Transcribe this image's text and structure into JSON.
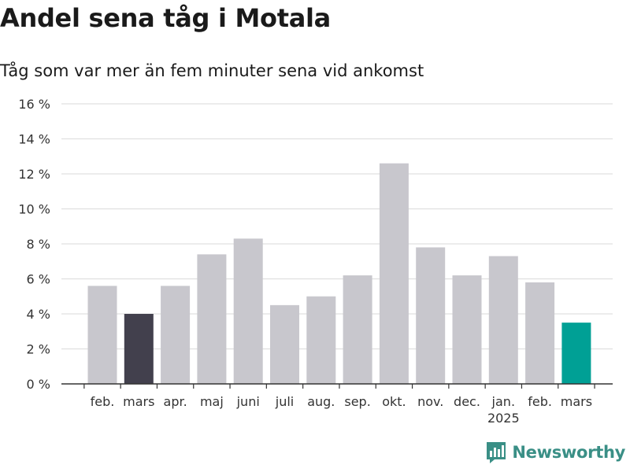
{
  "header": {
    "title": "Andel sena tåg i Motala",
    "subtitle": "Tåg som var mer än fem minuter sena vid ankomst"
  },
  "brand": {
    "label": "Newsworthy"
  },
  "colors": {
    "default_bar": "#c8c7cd",
    "prior_year_bar": "#42404d",
    "current_bar": "#00a095",
    "grid": "#e0e0e0",
    "axis": "#333333"
  },
  "chart_data": {
    "type": "bar",
    "categories": [
      "feb.",
      "mars",
      "apr.",
      "maj",
      "juni",
      "juli",
      "aug.",
      "sep.",
      "okt.",
      "nov.",
      "dec.",
      "jan.",
      "feb.",
      "mars"
    ],
    "year_label": {
      "category_index": 11,
      "text": "2025"
    },
    "values": [
      5.6,
      4.0,
      5.6,
      7.4,
      8.3,
      4.5,
      5.0,
      6.2,
      12.6,
      7.8,
      6.2,
      7.3,
      5.8,
      3.5
    ],
    "highlight": {
      "prior_year_index": 1,
      "current_index": 13
    },
    "ylim": [
      0,
      16
    ],
    "yticks": [
      0,
      2,
      4,
      6,
      8,
      10,
      12,
      14,
      16
    ],
    "ytick_labels": [
      "0 %",
      "2 %",
      "4 %",
      "6 %",
      "8 %",
      "10 %",
      "12 %",
      "14 %",
      "16 %"
    ],
    "grid": true,
    "legend": "none"
  }
}
